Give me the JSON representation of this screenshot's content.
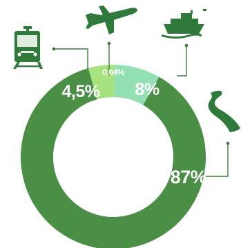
{
  "chart_data": {
    "type": "pie",
    "title": "",
    "donut": true,
    "slices": [
      {
        "label": "8%",
        "value": 8,
        "icon": "ship-icon",
        "color": "#93e0b4",
        "category_icon_name": "ship-icon"
      },
      {
        "label": "87%",
        "value": 87,
        "icon": "road-icon",
        "color": "#4a8f45",
        "category_icon_name": "road-icon"
      },
      {
        "label": "4,5%",
        "value": 4.5,
        "icon": "train-icon",
        "color": "#a6e27f",
        "category_icon_name": "train-icon"
      },
      {
        "label": "0,04%",
        "value": 0.04,
        "icon": "airplane-icon",
        "color": "#c5ea43",
        "category_icon_name": "airplane-icon"
      }
    ],
    "legend": "none"
  },
  "colors": {
    "icon": "#2f7a3a",
    "leader_line": "#3c7a3a",
    "background": "#ffffff"
  }
}
